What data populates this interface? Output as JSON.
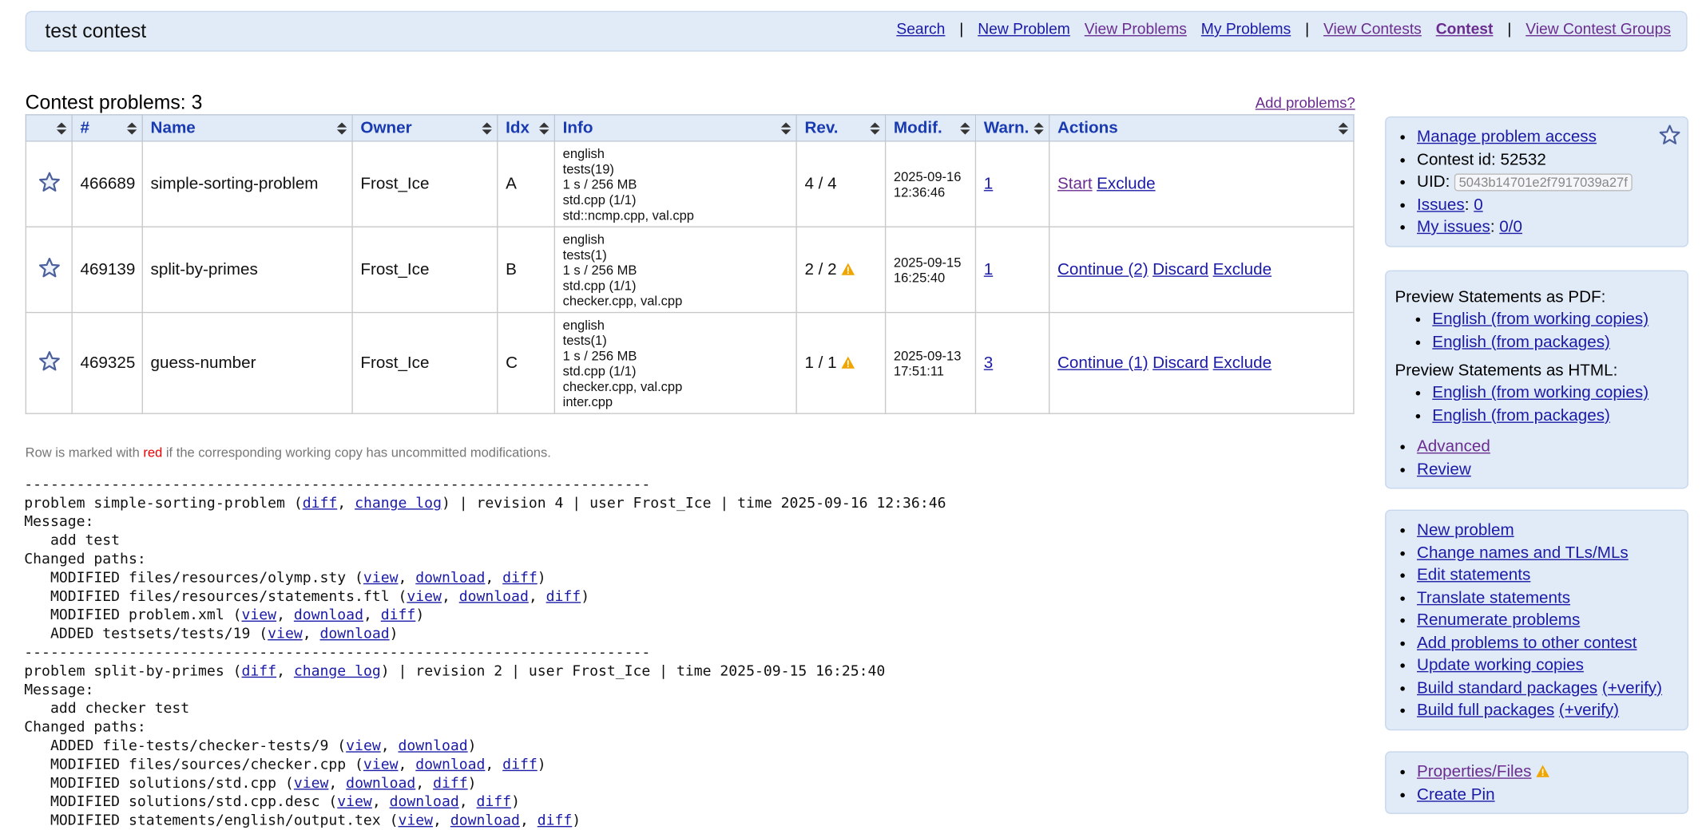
{
  "header": {
    "title": "test contest",
    "nav": [
      {
        "text": "Search",
        "color": "#1a1aa6"
      },
      {
        "text": "|"
      },
      {
        "text": "New Problem",
        "color": "#1a1aa6"
      },
      {
        "text": "View Problems",
        "color": "#6a2d8f"
      },
      {
        "text": "My Problems",
        "color": "#1a1aa6"
      },
      {
        "text": "|"
      },
      {
        "text": "View Contests",
        "color": "#6a2d8f"
      },
      {
        "text": "Contest",
        "color": "#6a2d8f",
        "bold": true
      },
      {
        "text": "|"
      },
      {
        "text": "View Contest Groups",
        "color": "#6a2d8f"
      }
    ]
  },
  "table": {
    "title": "Contest problems: 3",
    "add_link": "Add problems?",
    "columns": [
      null,
      "#",
      "Name",
      "Owner",
      "Idx",
      "Info",
      "Rev.",
      "Modif.",
      "Warn.",
      "Actions"
    ],
    "rows": [
      {
        "id": "466689",
        "name": "simple-sorting-problem",
        "owner": "Frost_Ice",
        "idx": "A",
        "info": [
          "english",
          "tests(19)",
          "1 s / 256 MB",
          "std.cpp (1/1)",
          "std::ncmp.cpp, val.cpp"
        ],
        "rev": "4 / 4",
        "rev_warning": false,
        "modif": [
          "2025-09-16",
          "12:36:46"
        ],
        "warn": "1",
        "actions": [
          {
            "text": "Start",
            "color": "#6a2d8f"
          },
          {
            "text": "Exclude",
            "color": "#1a1aa6"
          }
        ]
      },
      {
        "id": "469139",
        "name": "split-by-primes",
        "owner": "Frost_Ice",
        "idx": "B",
        "info": [
          "english",
          "tests(1)",
          "1 s / 256 MB",
          "std.cpp (1/1)",
          "checker.cpp, val.cpp"
        ],
        "rev": "2 / 2",
        "rev_warning": true,
        "modif": [
          "2025-09-15",
          "16:25:40"
        ],
        "warn": "1",
        "actions": [
          {
            "text": "Continue (2)",
            "color": "#1a1aa6"
          },
          {
            "text": "Discard",
            "color": "#1a1aa6"
          },
          {
            "text": "Exclude",
            "color": "#1a1aa6"
          }
        ]
      },
      {
        "id": "469325",
        "name": "guess-number",
        "owner": "Frost_Ice",
        "idx": "C",
        "info": [
          "english",
          "tests(1)",
          "1 s / 256 MB",
          "std.cpp (1/1)",
          "checker.cpp, val.cpp",
          "inter.cpp"
        ],
        "rev": "1 / 1",
        "rev_warning": true,
        "modif": [
          "2025-09-13",
          "17:51:11"
        ],
        "warn": "3",
        "actions": [
          {
            "text": "Continue (1)",
            "color": "#1a1aa6"
          },
          {
            "text": "Discard",
            "color": "#1a1aa6"
          },
          {
            "text": "Exclude",
            "color": "#1a1aa6"
          }
        ]
      }
    ]
  },
  "note": [
    "Row is marked with ",
    "red",
    " if the corresponding working copy has uncommitted modifications."
  ],
  "log": [
    "------------------------------------------------------------------------",
    [
      "problem simple-sorting-problem (",
      {
        "link": "diff"
      },
      ", ",
      {
        "link": "change log"
      },
      ") | revision 4 | user Frost_Ice | time 2025-09-16 12:36:46"
    ],
    "Message:",
    "   add test",
    "Changed paths:",
    [
      "   MODIFIED files/resources/olymp.sty (",
      {
        "link": "view"
      },
      ", ",
      {
        "link": "download"
      },
      ", ",
      {
        "link": "diff"
      },
      ")"
    ],
    [
      "   MODIFIED files/resources/statements.ftl (",
      {
        "link": "view"
      },
      ", ",
      {
        "link": "download"
      },
      ", ",
      {
        "link": "diff"
      },
      ")"
    ],
    [
      "   MODIFIED problem.xml (",
      {
        "link": "view"
      },
      ", ",
      {
        "link": "download"
      },
      ", ",
      {
        "link": "diff"
      },
      ")"
    ],
    [
      "   ADDED testsets/tests/19 (",
      {
        "link": "view"
      },
      ", ",
      {
        "link": "download"
      },
      ")"
    ],
    "------------------------------------------------------------------------",
    [
      "problem split-by-primes (",
      {
        "link": "diff"
      },
      ", ",
      {
        "link": "change log"
      },
      ") | revision 2 | user Frost_Ice | time 2025-09-15 16:25:40"
    ],
    "Message:",
    "   add checker test",
    "Changed paths:",
    [
      "   ADDED file-tests/checker-tests/9 (",
      {
        "link": "view"
      },
      ", ",
      {
        "link": "download"
      },
      ")"
    ],
    [
      "   MODIFIED files/sources/checker.cpp (",
      {
        "link": "view"
      },
      ", ",
      {
        "link": "download"
      },
      ", ",
      {
        "link": "diff"
      },
      ")"
    ],
    [
      "   MODIFIED solutions/std.cpp (",
      {
        "link": "view"
      },
      ", ",
      {
        "link": "download"
      },
      ", ",
      {
        "link": "diff"
      },
      ")"
    ],
    [
      "   MODIFIED solutions/std.cpp.desc (",
      {
        "link": "view"
      },
      ", ",
      {
        "link": "download"
      },
      ", ",
      {
        "link": "diff"
      },
      ")"
    ],
    [
      "   MODIFIED statements/english/output.tex (",
      {
        "link": "view"
      },
      ", ",
      {
        "link": "download"
      },
      ", ",
      {
        "link": "diff"
      },
      ")"
    ]
  ],
  "sidebar": [
    [
      {
        "items": [
          [
            {
              "link": "Manage problem access"
            }
          ],
          [
            "Contest id: 52532"
          ],
          [
            "UID: ",
            {
              "input": "5043b14701e2f7917039a27f"
            }
          ],
          [
            {
              "link": "Issues"
            },
            ": ",
            {
              "link": "0"
            }
          ],
          [
            {
              "link": "My issues"
            },
            ": ",
            {
              "link": "0/0"
            }
          ]
        ]
      }
    ],
    [
      {
        "heading": "Preview Statements as PDF:",
        "items": [
          [
            {
              "link": "English (from working copies)"
            }
          ],
          [
            {
              "link": "English (from packages)"
            }
          ]
        ]
      },
      {
        "heading": "Preview Statements as HTML:",
        "items": [
          [
            {
              "link": "English (from working copies)"
            }
          ],
          [
            {
              "link": "English (from packages)"
            }
          ]
        ]
      },
      {
        "items": [
          [
            {
              "link": "Advanced",
              "color": "#6a2d8f"
            }
          ],
          [
            {
              "link": "Review"
            }
          ]
        ]
      }
    ],
    [
      {
        "items": [
          [
            {
              "link": "New problem"
            }
          ],
          [
            {
              "link": "Change names and TLs/MLs"
            }
          ],
          [
            {
              "link": "Edit statements"
            }
          ],
          [
            {
              "link": "Translate statements"
            }
          ],
          [
            {
              "link": "Renumerate problems"
            }
          ],
          [
            {
              "link": "Add problems to other contest"
            }
          ],
          [
            {
              "link": "Update working copies"
            }
          ],
          [
            {
              "link": "Build standard packages"
            },
            " ",
            {
              "link": "(+verify)"
            }
          ],
          [
            {
              "link": "Build full packages"
            },
            " ",
            {
              "link": "(+verify)"
            }
          ]
        ]
      }
    ],
    [
      {
        "items": [
          [
            {
              "link": "Properties/Files",
              "color": "#6a2d8f"
            },
            {
              "warning": true
            }
          ],
          [
            {
              "link": "Create Pin"
            }
          ]
        ]
      }
    ]
  ]
}
